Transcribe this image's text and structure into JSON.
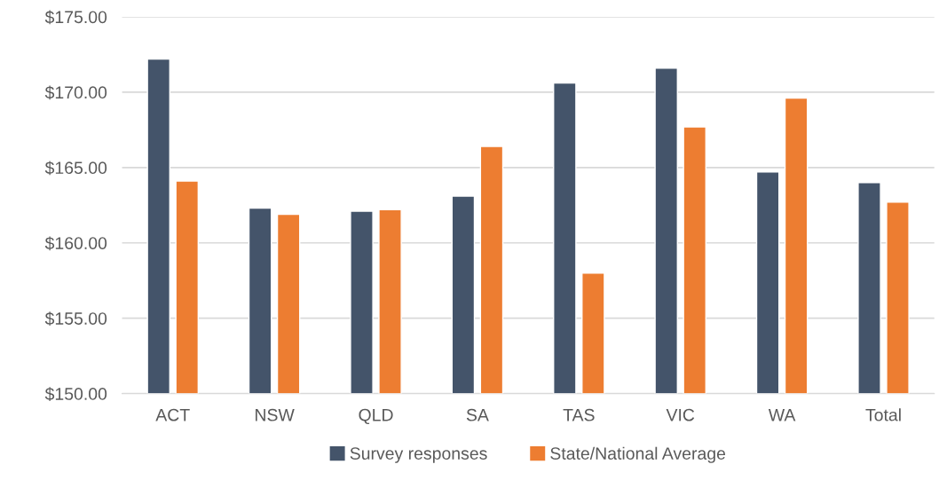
{
  "chart_data": {
    "type": "bar",
    "categories": [
      "ACT",
      "NSW",
      "QLD",
      "SA",
      "TAS",
      "VIC",
      "WA",
      "Total"
    ],
    "series": [
      {
        "name": "Survey responses",
        "color": "#44546a",
        "values": [
          172.2,
          162.3,
          162.1,
          163.1,
          170.6,
          171.6,
          164.7,
          164.0
        ]
      },
      {
        "name": "State/National Average",
        "color": "#ed7d31",
        "values": [
          164.1,
          161.9,
          162.2,
          166.4,
          158.0,
          167.7,
          169.6,
          162.7
        ]
      }
    ],
    "ylim": [
      150,
      175
    ],
    "yticks": [
      {
        "value": 150,
        "label": "$150.00"
      },
      {
        "value": 155,
        "label": "$155.00"
      },
      {
        "value": 160,
        "label": "$160.00"
      },
      {
        "value": 165,
        "label": "$165.00"
      },
      {
        "value": 170,
        "label": "$170.00"
      },
      {
        "value": 175,
        "label": "$175.00"
      }
    ],
    "grid": "y",
    "legend": "bottom"
  }
}
